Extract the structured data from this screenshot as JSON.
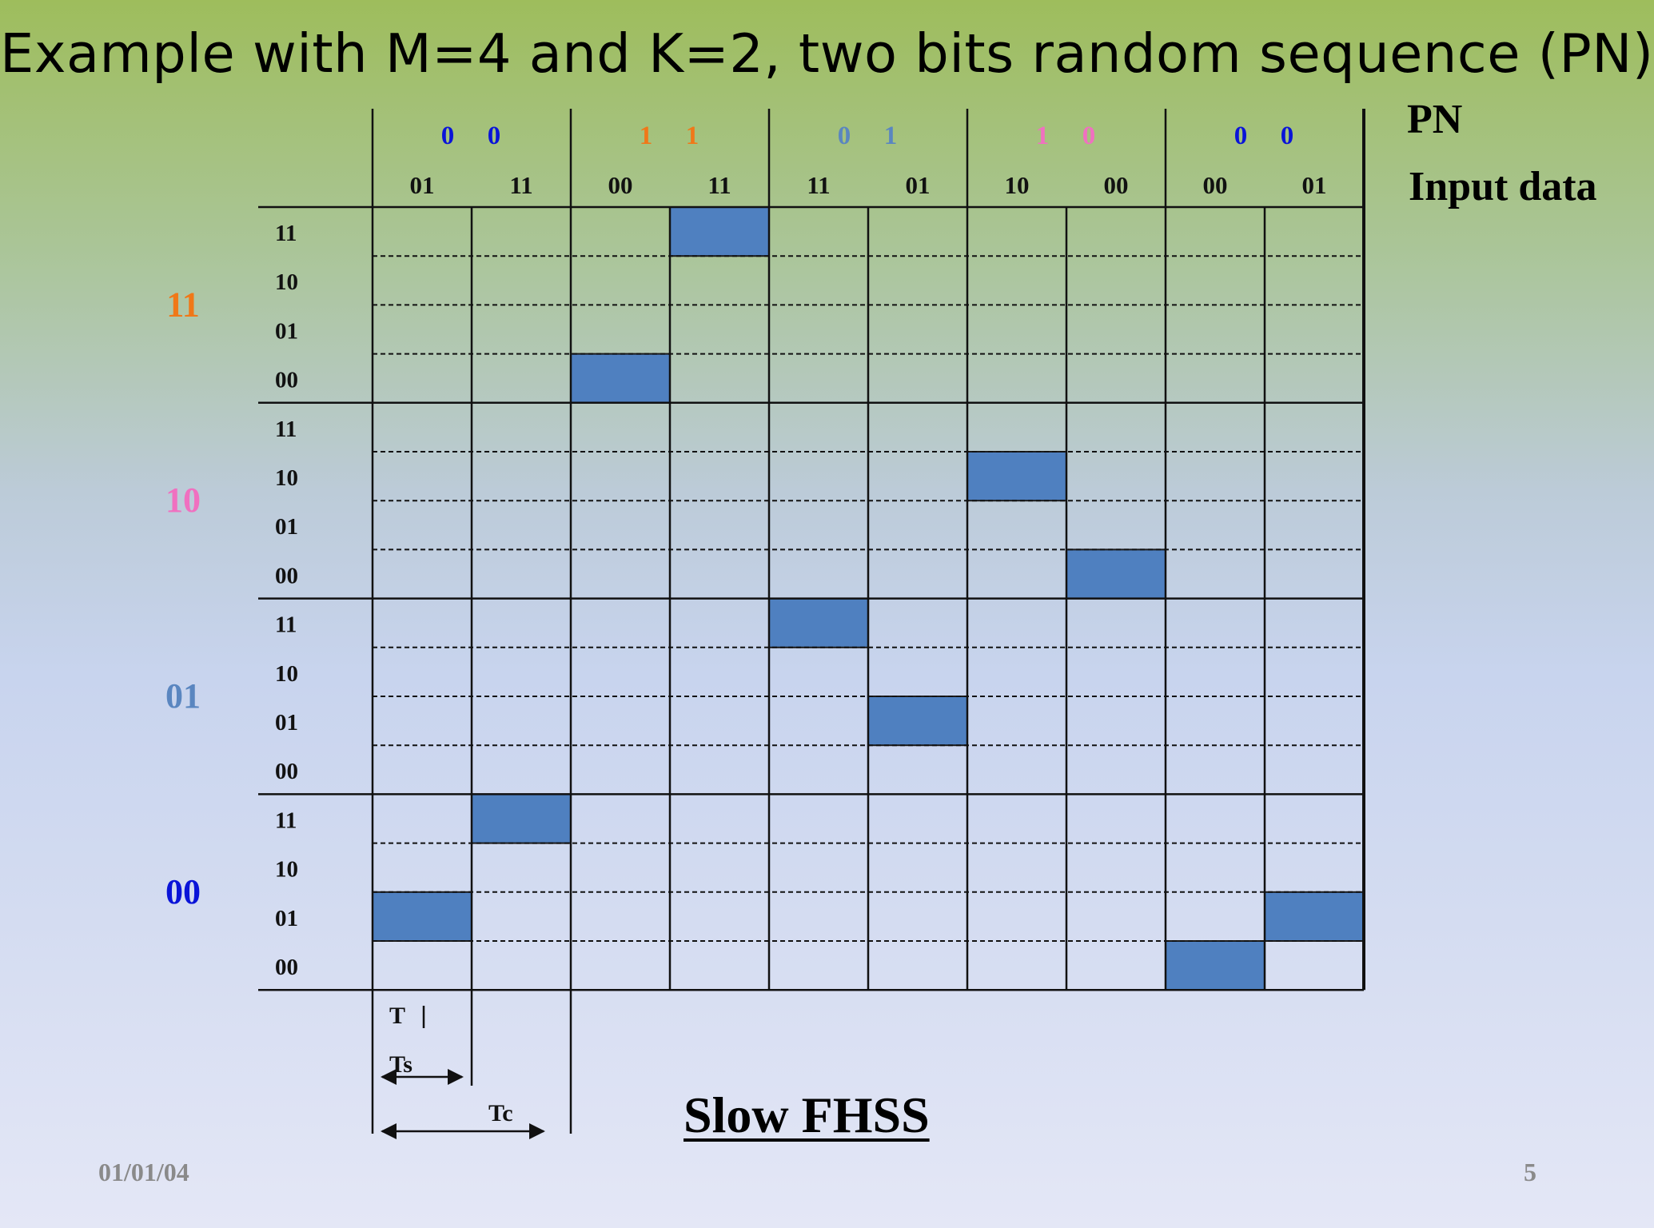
{
  "title": "Example with M=4 and K=2, two bits random sequence (PN)",
  "pn_label": "PN",
  "input_label": "Input data",
  "slow_label": "Slow FHSS",
  "footer": {
    "date": "01/01/04",
    "page": "5"
  },
  "pn_sequence": [
    {
      "bits": [
        "0",
        "0"
      ],
      "color": "#0a14d8"
    },
    {
      "bits": [
        "1",
        "1"
      ],
      "color": "#f07818"
    },
    {
      "bits": [
        "0",
        "1"
      ],
      "color": "#5a86c0"
    },
    {
      "bits": [
        "1",
        "0"
      ],
      "color": "#f070c0"
    },
    {
      "bits": [
        "0",
        "0"
      ],
      "color": "#0a14d8"
    }
  ],
  "input_data": [
    "01",
    "11",
    "00",
    "11",
    "11",
    "01",
    "10",
    "00",
    "00",
    "01"
  ],
  "groups": [
    {
      "label": "11",
      "color": "#f07818"
    },
    {
      "label": "10",
      "color": "#f070c0"
    },
    {
      "label": "01",
      "color": "#5a86c0"
    },
    {
      "label": "00",
      "color": "#0a14d8"
    }
  ],
  "sub_rows": [
    "11",
    "10",
    "01",
    "00"
  ],
  "highlight_color": "#4f80c0",
  "highlights": [
    {
      "col": 0,
      "group": "00",
      "row": "01"
    },
    {
      "col": 1,
      "group": "00",
      "row": "11"
    },
    {
      "col": 2,
      "group": "11",
      "row": "00"
    },
    {
      "col": 3,
      "group": "11",
      "row": "11"
    },
    {
      "col": 4,
      "group": "01",
      "row": "11"
    },
    {
      "col": 5,
      "group": "01",
      "row": "01"
    },
    {
      "col": 6,
      "group": "10",
      "row": "10"
    },
    {
      "col": 7,
      "group": "10",
      "row": "00"
    },
    {
      "col": 8,
      "group": "00",
      "row": "00"
    },
    {
      "col": 9,
      "group": "00",
      "row": "01"
    }
  ],
  "timing": {
    "t_label": "T",
    "ts_label": "Ts",
    "tc_label": "Tc"
  }
}
